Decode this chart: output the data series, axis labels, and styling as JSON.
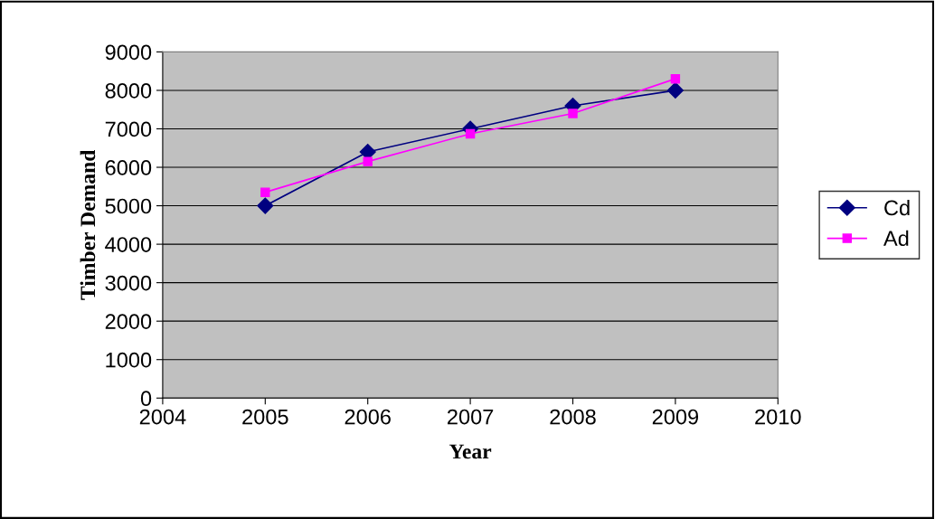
{
  "chart_data": {
    "type": "line",
    "xlabel": "Year",
    "ylabel": "Timber Demand",
    "x": [
      2005,
      2006,
      2007,
      2008,
      2009
    ],
    "series": [
      {
        "name": "Cd",
        "color": "#000080",
        "marker": "diamond",
        "values": [
          5000,
          6400,
          7000,
          7600,
          8000
        ]
      },
      {
        "name": "Ad",
        "color": "#ff00ff",
        "marker": "square",
        "values": [
          5350,
          6150,
          6870,
          7400,
          8300
        ]
      }
    ],
    "xlim": [
      2004,
      2010
    ],
    "xticks": [
      2004,
      2005,
      2006,
      2007,
      2008,
      2009,
      2010
    ],
    "ylim": [
      0,
      9000
    ],
    "yticks": [
      0,
      1000,
      2000,
      3000,
      4000,
      5000,
      6000,
      7000,
      8000,
      9000
    ],
    "grid": "y",
    "legend": "right"
  }
}
